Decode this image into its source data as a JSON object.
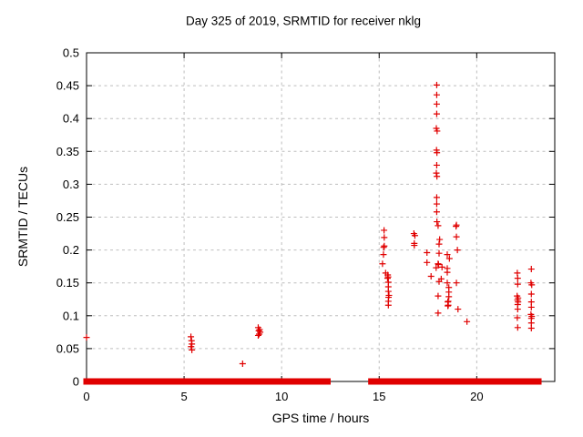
{
  "chart_data": {
    "type": "scatter",
    "title": "Day 325 of 2019, SRMTID for receiver nklg",
    "xlabel": "GPS time / hours",
    "ylabel": "SRMTID / TECUs",
    "xlim": [
      0,
      24
    ],
    "ylim": [
      0,
      0.5
    ],
    "xtick_values": [
      0,
      5,
      10,
      15,
      20
    ],
    "xtick_labels": [
      "0",
      "5",
      "10",
      "15",
      "20"
    ],
    "ytick_values": [
      0,
      0.05,
      0.1,
      0.15,
      0.2,
      0.25,
      0.3,
      0.35,
      0.4,
      0.45,
      0.5
    ],
    "ytick_labels": [
      "0",
      "0.05",
      "0.1",
      "0.15",
      "0.2",
      "0.25",
      "0.3",
      "0.35",
      "0.4",
      "0.45",
      "0.5"
    ],
    "grid": true,
    "legend": false,
    "marker": "plus",
    "colors": {
      "marker": "#e00000",
      "grid": "#bebebe",
      "axis": "#000000",
      "text": "#000000"
    },
    "series": [
      {
        "name": "SRMTID",
        "zero_segments": [
          [
            0.0,
            2.67
          ],
          [
            2.92,
            3.17
          ],
          [
            3.27,
            3.57
          ],
          [
            3.65,
            8.8
          ],
          [
            9.0,
            12.35
          ],
          [
            14.6,
            15.13
          ],
          [
            15.25,
            17.92
          ],
          [
            18.1,
            18.57
          ],
          [
            18.76,
            22.85
          ],
          [
            23.0,
            23.16
          ]
        ],
        "points": [
          [
            0.0,
            0.067
          ],
          [
            5.35,
            0.068
          ],
          [
            5.38,
            0.062
          ],
          [
            5.4,
            0.057
          ],
          [
            5.36,
            0.053
          ],
          [
            5.4,
            0.048
          ],
          [
            8.0,
            0.027
          ],
          [
            8.8,
            0.082
          ],
          [
            8.87,
            0.079
          ],
          [
            8.83,
            0.077
          ],
          [
            8.9,
            0.075
          ],
          [
            8.85,
            0.072
          ],
          [
            8.8,
            0.07
          ],
          [
            15.25,
            0.23
          ],
          [
            15.26,
            0.219
          ],
          [
            15.26,
            0.206
          ],
          [
            15.23,
            0.204
          ],
          [
            15.22,
            0.193
          ],
          [
            15.17,
            0.179
          ],
          [
            15.33,
            0.165
          ],
          [
            15.44,
            0.162
          ],
          [
            15.46,
            0.159
          ],
          [
            15.43,
            0.157
          ],
          [
            15.47,
            0.151
          ],
          [
            15.47,
            0.144
          ],
          [
            15.47,
            0.137
          ],
          [
            15.5,
            0.131
          ],
          [
            15.48,
            0.128
          ],
          [
            15.47,
            0.122
          ],
          [
            15.47,
            0.116
          ],
          [
            16.78,
            0.225
          ],
          [
            16.83,
            0.222
          ],
          [
            16.8,
            0.21
          ],
          [
            16.8,
            0.207
          ],
          [
            17.45,
            0.196
          ],
          [
            17.45,
            0.181
          ],
          [
            17.66,
            0.16
          ],
          [
            17.95,
            0.451
          ],
          [
            17.95,
            0.436
          ],
          [
            17.95,
            0.422
          ],
          [
            17.95,
            0.407
          ],
          [
            17.93,
            0.385
          ],
          [
            17.97,
            0.381
          ],
          [
            17.94,
            0.352
          ],
          [
            17.96,
            0.348
          ],
          [
            17.95,
            0.329
          ],
          [
            17.93,
            0.317
          ],
          [
            17.96,
            0.312
          ],
          [
            17.95,
            0.28
          ],
          [
            17.95,
            0.27
          ],
          [
            17.95,
            0.258
          ],
          [
            17.96,
            0.243
          ],
          [
            18.02,
            0.237
          ],
          [
            18.1,
            0.216
          ],
          [
            18.07,
            0.209
          ],
          [
            18.07,
            0.195
          ],
          [
            18.02,
            0.179
          ],
          [
            18.04,
            0.178
          ],
          [
            17.92,
            0.173
          ],
          [
            18.22,
            0.174
          ],
          [
            18.18,
            0.156
          ],
          [
            18.07,
            0.152
          ],
          [
            18.02,
            0.13
          ],
          [
            18.02,
            0.104
          ],
          [
            18.49,
            0.193
          ],
          [
            18.6,
            0.187
          ],
          [
            18.49,
            0.172
          ],
          [
            18.49,
            0.166
          ],
          [
            18.49,
            0.15
          ],
          [
            18.57,
            0.143
          ],
          [
            18.57,
            0.136
          ],
          [
            18.57,
            0.129
          ],
          [
            18.54,
            0.122
          ],
          [
            18.52,
            0.121
          ],
          [
            18.54,
            0.116
          ],
          [
            18.52,
            0.115
          ],
          [
            18.96,
            0.238
          ],
          [
            18.94,
            0.236
          ],
          [
            18.96,
            0.22
          ],
          [
            19.01,
            0.2
          ],
          [
            18.96,
            0.15
          ],
          [
            19.04,
            0.11
          ],
          [
            19.5,
            0.091
          ],
          [
            22.08,
            0.165
          ],
          [
            22.1,
            0.157
          ],
          [
            22.1,
            0.148
          ],
          [
            22.07,
            0.13
          ],
          [
            22.12,
            0.127
          ],
          [
            22.09,
            0.124
          ],
          [
            22.12,
            0.121
          ],
          [
            22.1,
            0.117
          ],
          [
            22.1,
            0.11
          ],
          [
            22.08,
            0.097
          ],
          [
            22.1,
            0.082
          ],
          [
            22.8,
            0.171
          ],
          [
            22.78,
            0.15
          ],
          [
            22.82,
            0.147
          ],
          [
            22.8,
            0.133
          ],
          [
            22.8,
            0.121
          ],
          [
            22.8,
            0.113
          ],
          [
            22.78,
            0.102
          ],
          [
            22.82,
            0.099
          ],
          [
            22.8,
            0.096
          ],
          [
            22.8,
            0.089
          ],
          [
            22.8,
            0.081
          ]
        ]
      }
    ]
  }
}
